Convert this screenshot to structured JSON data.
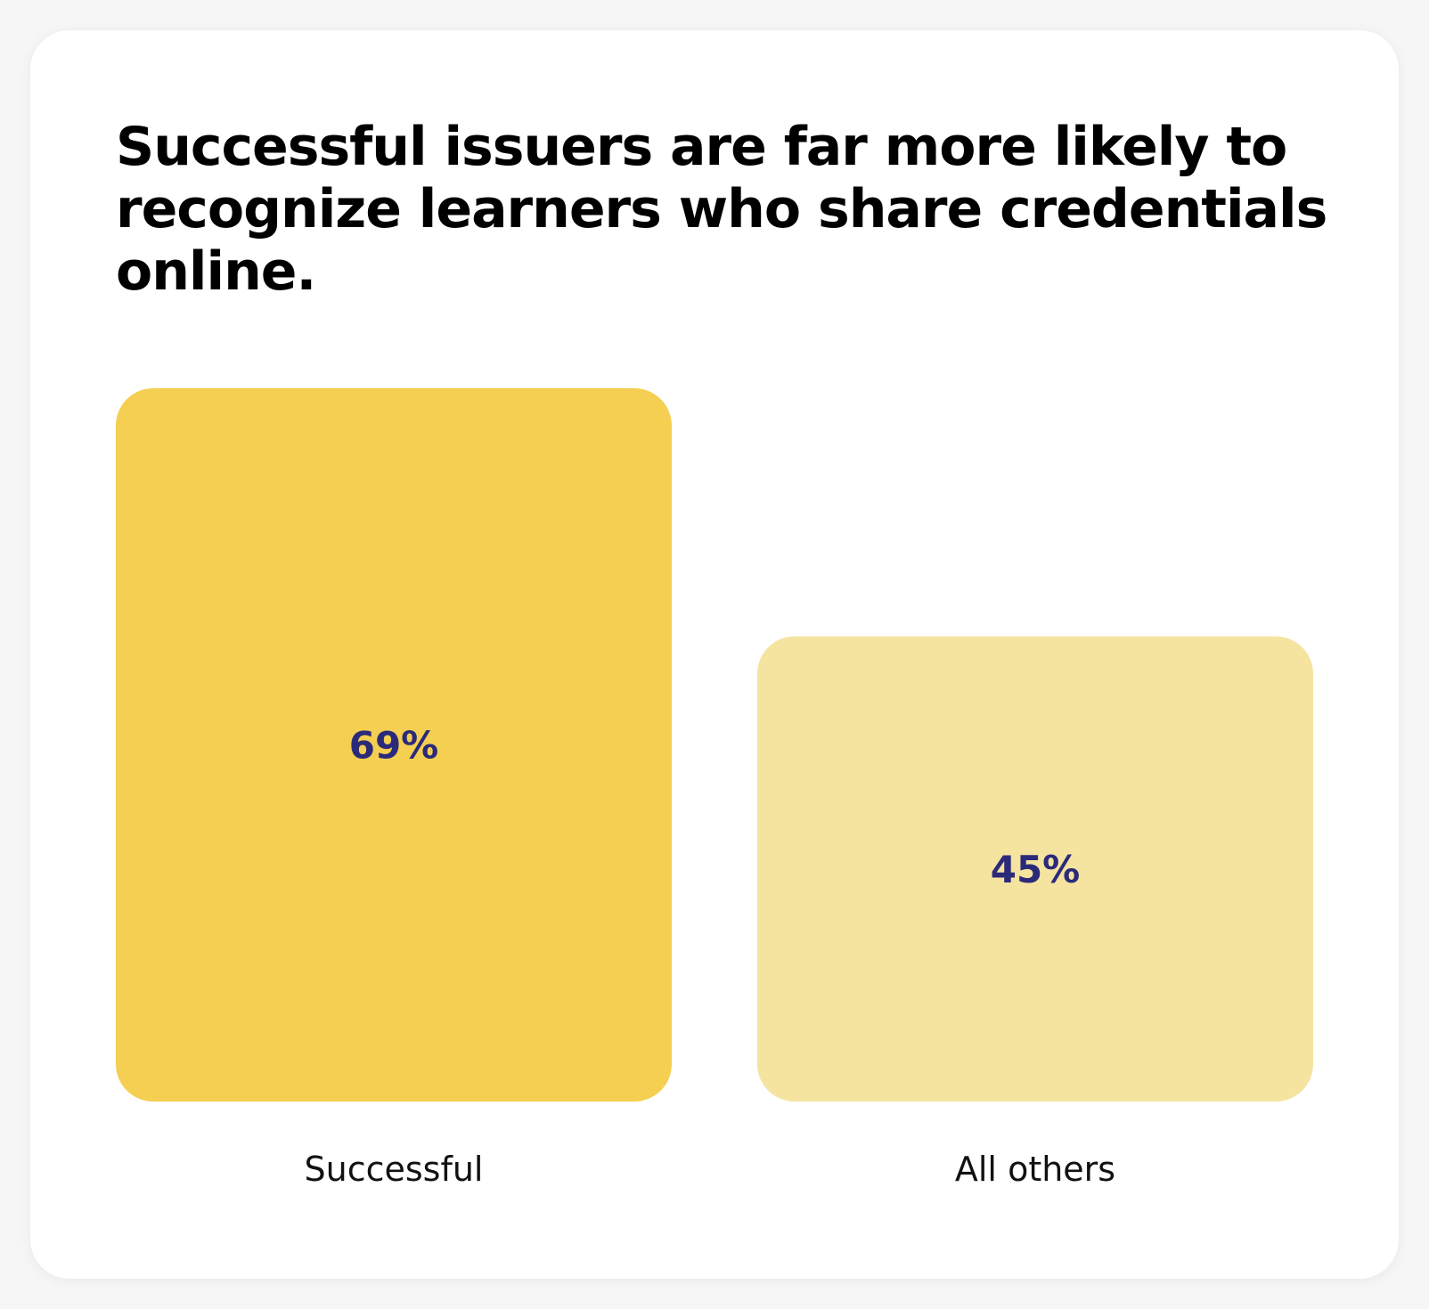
{
  "title": "Successful issuers are far more likely to recognize learners who share credentials online.",
  "colors": {
    "background": "#ffffff",
    "title": "#000000",
    "value_label": "#2b2a7a",
    "category_label": "#111111",
    "bar_successful": "#f4cf52",
    "bar_others": "#f5e3a0"
  },
  "chart_data": {
    "type": "bar",
    "title": "Successful issuers are far more likely to recognize learners who share credentials online.",
    "categories": [
      "Successful",
      "All others"
    ],
    "values": [
      69,
      45
    ],
    "value_labels": [
      "69%",
      "45%"
    ],
    "xlabel": "",
    "ylabel": "",
    "ylim": [
      0,
      69
    ],
    "grid": false,
    "legend": "none"
  }
}
